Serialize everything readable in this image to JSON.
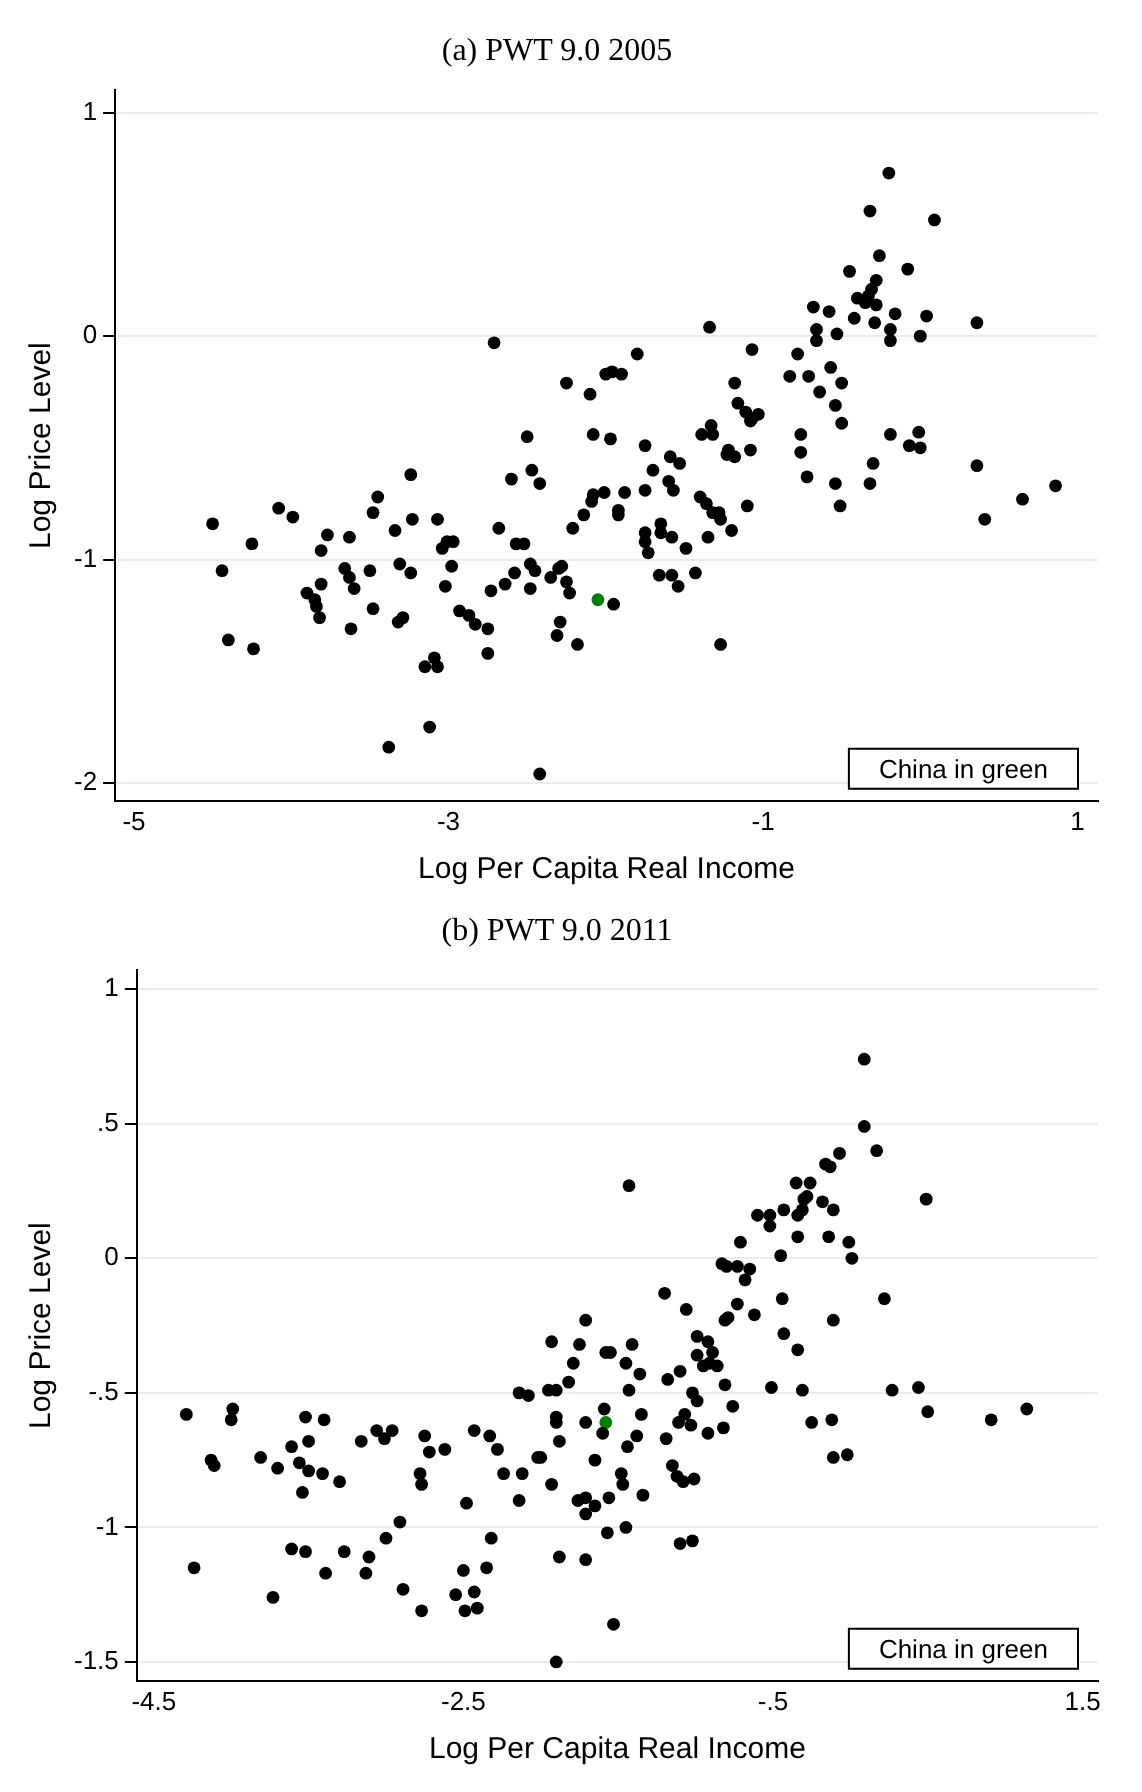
{
  "chart_data": [
    {
      "type": "scatter",
      "title": "(a) PWT 9.0 2005",
      "xlabel": "Log Per Capita Real Income",
      "ylabel": "Log Price Level",
      "xlim": [
        -5.12,
        1.13
      ],
      "ylim": [
        -2.08,
        1.1
      ],
      "xticks": [
        -5,
        -3,
        -1,
        1
      ],
      "yticks": [
        -2,
        -1,
        0,
        1
      ],
      "grid": "y",
      "marker": "circle",
      "annotations": [
        "China in green"
      ],
      "series": [
        {
          "color": "#000000",
          "x": [
            -4.5,
            -4.44,
            -4.4,
            -4.25,
            -4.24,
            -4.08,
            -3.99,
            -3.9,
            -3.85,
            -3.84,
            -3.82,
            -3.81,
            -3.81,
            -3.77,
            -3.66,
            -3.63,
            -3.63,
            -3.6,
            -3.62,
            -3.5,
            -3.48,
            -3.48,
            -3.45,
            -3.34,
            -3.31,
            -3.32,
            -3.29,
            -3.24,
            -3.23,
            -3.24,
            -3.15,
            -3.12,
            -3.09,
            -3.07,
            -3.07,
            -3.04,
            -3.02,
            -3.01,
            -2.98,
            -2.97,
            -2.93,
            -2.87,
            -2.83,
            -2.75,
            -2.75,
            -2.73,
            -2.71,
            -2.68,
            -2.64,
            -2.6,
            -2.58,
            -2.57,
            -2.52,
            -2.5,
            -2.48,
            -2.47,
            -2.48,
            -3.38,
            -0.2,
            -0.32,
            0.09,
            -0.26,
            -0.45,
            -0.08,
            -0.68,
            -0.58,
            -0.28,
            -0.4,
            -0.33,
            -0.31,
            -0.35,
            -0.28,
            -0.42,
            -0.29,
            -0.16,
            -0.19,
            -0.19,
            0.04,
            0.0,
            0.36,
            -0.66,
            -0.66,
            -0.53,
            -1.34,
            -1.07,
            -0.78,
            -0.83,
            -0.71,
            -0.64,
            -0.57,
            -0.5,
            -0.54,
            -0.5,
            -1.18,
            -1.16,
            -1.11,
            -1.08,
            -1.03,
            -1.07,
            -2.25,
            -2.1,
            -1.8,
            -2.0,
            -1.96,
            -1.9,
            -2.08,
            -1.97,
            -1.75,
            -1.39,
            -1.33,
            -1.32,
            -1.22,
            -1.23,
            -1.18,
            -1.08,
            -0.76,
            -0.76,
            -0.72,
            -0.54,
            -0.51,
            -0.32,
            -0.3,
            -0.19,
            -0.07,
            -0.01,
            0.0,
            0.36,
            0.41,
            0.65,
            0.86,
            -1.59,
            -1.53,
            -1.7,
            -1.75,
            -1.6,
            -1.57,
            -1.4,
            -1.36,
            -1.32,
            -1.28,
            -1.27,
            -1.35,
            -1.2,
            -1.1,
            -1.88,
            -2.01,
            -2.08,
            -2.09,
            -2.14,
            -2.21,
            -1.92,
            -1.92,
            -1.75,
            -1.75,
            -1.73,
            -1.65,
            -1.65,
            -1.58,
            -1.49,
            -1.43,
            -1.66,
            -1.58,
            -1.54,
            -2.45,
            -2.42,
            -2.35,
            -2.3,
            -2.28,
            -2.25,
            -2.23,
            -2.29,
            -2.31,
            -2.18,
            -1.95,
            -1.27,
            -2.42
          ],
          "values": [
            -0.84,
            -1.05,
            -1.36,
            -0.93,
            -1.4,
            -0.77,
            -0.81,
            -1.15,
            -1.18,
            -1.21,
            -1.26,
            -0.96,
            -1.11,
            -0.89,
            -1.04,
            -1.08,
            -0.9,
            -1.13,
            -1.31,
            -1.05,
            -1.22,
            -0.79,
            -0.72,
            -0.87,
            -1.02,
            -1.28,
            -1.26,
            -0.62,
            -0.82,
            -1.06,
            -1.48,
            -1.75,
            -1.44,
            -1.48,
            -0.82,
            -0.95,
            -1.12,
            -0.92,
            -1.03,
            -0.92,
            -1.23,
            -1.25,
            -1.29,
            -1.42,
            -1.31,
            -1.14,
            -0.03,
            -0.86,
            -1.11,
            -0.64,
            -1.06,
            -0.93,
            -0.93,
            -0.45,
            -1.13,
            -0.6,
            -1.02,
            -1.84,
            0.73,
            0.56,
            0.52,
            0.36,
            0.29,
            0.3,
            0.13,
            0.11,
            0.25,
            0.17,
            0.18,
            0.21,
            0.15,
            0.14,
            0.08,
            0.06,
            0.1,
            0.03,
            -0.02,
            0.09,
            0.0,
            0.06,
            0.03,
            -0.02,
            0.01,
            0.04,
            -0.06,
            -0.08,
            -0.18,
            -0.18,
            -0.25,
            -0.14,
            -0.21,
            -0.31,
            -0.39,
            -0.21,
            -0.3,
            -0.34,
            -0.38,
            -0.35,
            -0.37,
            -0.21,
            -0.26,
            -0.08,
            -0.17,
            -0.16,
            -0.17,
            -0.44,
            -0.46,
            -0.49,
            -0.44,
            -0.4,
            -0.44,
            -0.51,
            -0.53,
            -0.54,
            -0.51,
            -0.44,
            -0.52,
            -0.63,
            -0.66,
            -0.76,
            -0.66,
            -0.57,
            -0.44,
            -0.49,
            -0.43,
            -0.5,
            -0.58,
            -0.82,
            -0.73,
            -0.67,
            -0.54,
            -0.57,
            -0.6,
            -0.69,
            -0.65,
            -0.69,
            -0.72,
            -0.75,
            -0.79,
            -0.79,
            -0.82,
            -0.9,
            -0.87,
            -0.76,
            -0.7,
            -0.7,
            -0.71,
            -0.74,
            -0.8,
            -0.86,
            -0.8,
            -0.78,
            -0.88,
            -0.92,
            -0.97,
            -0.84,
            -0.88,
            -0.9,
            -0.95,
            -1.06,
            -1.07,
            -1.07,
            -1.12,
            -1.05,
            -0.66,
            -1.08,
            -1.04,
            -1.03,
            -1.1,
            -1.15,
            -1.28,
            -1.34,
            -1.38,
            -1.2,
            -1.38,
            -1.96
          ]
        },
        {
          "color": "#008000",
          "x": [
            -2.05
          ],
          "values": [
            -1.18
          ]
        }
      ]
    },
    {
      "type": "scatter",
      "title": "(b) PWT 9.0 2011",
      "xlabel": "Log Per Capita Real Income",
      "ylabel": "Log Price Level",
      "xlim": [
        -4.61,
        1.6
      ],
      "ylim": [
        -1.57,
        1.07
      ],
      "xticks": [
        -4.5,
        -2.5,
        {
          "value": -0.5,
          "label": "-.5"
        },
        1.5
      ],
      "yticks": [
        {
          "value": -1.5,
          "label": "-1.5"
        },
        -1,
        {
          "value": -0.5,
          "label": "-.5"
        },
        0,
        {
          "value": 0.5,
          "label": ".5"
        },
        1
      ],
      "grid": "y",
      "marker": "circle",
      "annotations": [
        "China in green"
      ],
      "series": [
        {
          "color": "#000000",
          "x": [
            -4.29,
            -4.24,
            -4.13,
            -4.11,
            -4.0,
            -3.99,
            -3.81,
            -3.73,
            -3.7,
            -3.61,
            -3.61,
            -3.56,
            -3.54,
            -3.52,
            -3.52,
            -3.5,
            -3.5,
            -3.4,
            -3.41,
            -3.39,
            -3.3,
            -3.27,
            -3.16,
            -3.13,
            -3.11,
            -3.06,
            -3.01,
            -3.0,
            -2.96,
            -2.91,
            -2.89,
            -2.78,
            -2.77,
            -2.77,
            -2.75,
            -2.72,
            -2.62,
            -2.55,
            -2.5,
            -2.49,
            -2.48,
            -2.43,
            -2.43,
            -2.41,
            -2.35,
            -2.33,
            -2.32,
            -2.28,
            -2.24,
            -2.14,
            -2.14,
            -2.12,
            -2.08,
            -2.02,
            0.09,
            0.09,
            0.17,
            -0.07,
            -0.16,
            -0.13,
            0.49,
            -1.43,
            -0.35,
            -0.26,
            -0.3,
            -0.28,
            -0.18,
            -0.11,
            -0.43,
            -0.34,
            -0.31,
            -0.6,
            -0.52,
            -0.52,
            -0.34,
            -0.14,
            -0.01,
            0.01,
            -0.71,
            -0.45,
            -0.83,
            -0.8,
            -0.73,
            -0.65,
            -0.68,
            -1.2,
            -0.73,
            -0.79,
            -0.81,
            -0.62,
            -0.44,
            -0.43,
            -0.11,
            -0.34,
            0.22,
            -1.06,
            -0.99,
            -0.92,
            -0.99,
            -0.89,
            -0.95,
            -0.86,
            -0.91,
            -0.81,
            -0.76,
            -0.51,
            -0.31,
            0.27,
            0.44,
            0.5,
            0.91,
            1.14,
            -0.25,
            -0.12,
            -0.11,
            -0.02,
            -1.71,
            -1.93,
            -1.75,
            -1.79,
            -1.82,
            -1.95,
            -1.9,
            -1.9,
            -1.9,
            -1.88,
            -2.0,
            -1.93,
            -1.71,
            -1.59,
            -1.6,
            -1.65,
            -1.58,
            -1.55,
            -1.45,
            -1.41,
            -1.36,
            -1.43,
            -1.35,
            -1.38,
            -1.44,
            -1.48,
            -1.47,
            -1.56,
            -1.76,
            -1.71,
            -1.71,
            -1.65,
            -1.57,
            -1.45,
            -1.34,
            -1.88,
            -1.71,
            -1.53,
            -1.9,
            -1.19,
            -1.18,
            -1.1,
            -1.11,
            -1.07,
            -1.03,
            -0.99,
            -1.02,
            -0.92,
            -0.82,
            -1.15,
            -1.12,
            -1.08,
            -1.01,
            -1.1,
            -1.02
          ],
          "values": [
            -0.58,
            -1.15,
            -0.75,
            -0.77,
            -0.6,
            -0.56,
            -0.74,
            -1.26,
            -0.78,
            -0.7,
            -1.08,
            -0.76,
            -0.87,
            -0.59,
            -1.09,
            -0.68,
            -0.79,
            -0.6,
            -0.8,
            -1.17,
            -0.83,
            -1.09,
            -0.68,
            -1.17,
            -1.11,
            -0.64,
            -0.67,
            -1.04,
            -0.64,
            -0.98,
            -1.23,
            -0.8,
            -0.84,
            -1.31,
            -0.66,
            -0.72,
            -0.71,
            -1.25,
            -1.16,
            -1.31,
            -0.91,
            -0.64,
            -1.24,
            -1.3,
            -1.15,
            -0.66,
            -1.04,
            -0.71,
            -0.8,
            -0.5,
            -0.9,
            -0.8,
            -0.51,
            -0.74,
            0.74,
            0.49,
            0.4,
            0.39,
            0.35,
            0.34,
            0.22,
            0.27,
            0.28,
            0.28,
            0.22,
            0.23,
            0.21,
            0.18,
            0.18,
            0.16,
            0.18,
            0.16,
            0.16,
            0.12,
            0.08,
            0.08,
            0.06,
            0.0,
            0.06,
            0.01,
            -0.02,
            -0.03,
            -0.03,
            -0.04,
            -0.08,
            -0.13,
            -0.17,
            -0.22,
            -0.23,
            -0.21,
            -0.15,
            -0.28,
            -0.23,
            -0.34,
            -0.15,
            -0.19,
            -0.29,
            -0.31,
            -0.36,
            -0.35,
            -0.4,
            -0.4,
            -0.39,
            -0.47,
            -0.55,
            -0.48,
            -0.49,
            -0.49,
            -0.48,
            -0.57,
            -0.6,
            -0.56,
            -0.61,
            -0.6,
            -0.74,
            -0.73,
            -0.23,
            -0.31,
            -0.32,
            -0.39,
            -0.46,
            -0.49,
            -0.49,
            -0.59,
            -0.61,
            -0.68,
            -0.74,
            -0.84,
            -0.61,
            -0.56,
            -0.65,
            -0.75,
            -0.35,
            -0.35,
            -0.39,
            -0.32,
            -0.43,
            -0.49,
            -0.58,
            -0.66,
            -0.7,
            -0.8,
            -0.84,
            -0.89,
            -0.9,
            -0.89,
            -0.95,
            -0.92,
            -1.02,
            -1.0,
            -0.88,
            -1.11,
            -1.12,
            -1.36,
            -1.5,
            -0.67,
            -0.45,
            -0.42,
            -0.61,
            -0.58,
            -0.62,
            -0.53,
            -0.5,
            -0.65,
            -0.63,
            -0.77,
            -0.81,
            -0.83,
            -0.82,
            -1.06,
            -1.05
          ]
        },
        {
          "color": "#008000",
          "x": [
            -1.58
          ],
          "values": [
            -0.61
          ]
        }
      ]
    }
  ]
}
